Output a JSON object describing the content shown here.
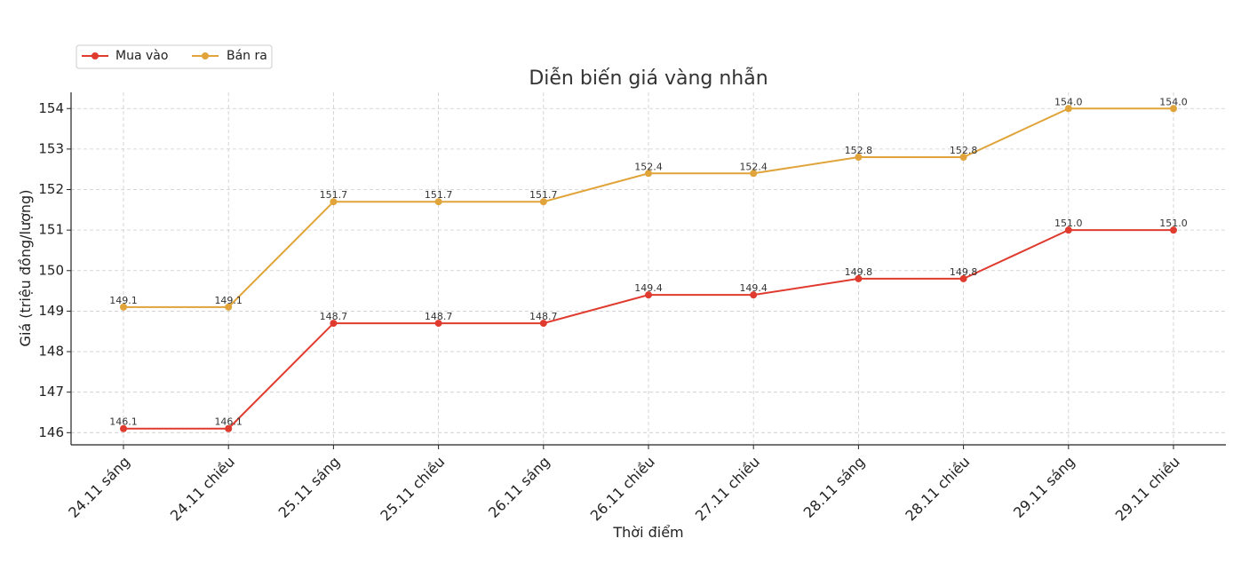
{
  "chart_data": {
    "type": "line",
    "title": "Diễn biến giá vàng nhẫn",
    "xlabel": "Thời điểm",
    "ylabel": "Giá (triệu đồng/lượng)",
    "categories": [
      "24.11 sáng",
      "24.11 chiều",
      "25.11 sáng",
      "25.11 chiều",
      "26.11 sáng",
      "26.11 chiều",
      "27.11 chiều",
      "28.11 sáng",
      "28.11 chiều",
      "29.11 sáng",
      "29.11 chiều"
    ],
    "ylim": [
      145.7,
      154.4
    ],
    "yticks": [
      146,
      147,
      148,
      149,
      150,
      151,
      152,
      153,
      154
    ],
    "grid": true,
    "legend_position": "top-left",
    "series": [
      {
        "name": "Mua vào",
        "color": "#e03b2f",
        "values": [
          146.1,
          146.1,
          148.7,
          148.7,
          148.7,
          149.4,
          149.4,
          149.8,
          149.8,
          151.0,
          151.0
        ],
        "labels": [
          "146.1",
          "146.1",
          "148.7",
          "148.7",
          "148.7",
          "149.4",
          "149.4",
          "149.8",
          "149.8",
          "151.0",
          "151.0"
        ]
      },
      {
        "name": "Bán ra",
        "color": "#e0a43a",
        "values": [
          149.1,
          149.1,
          151.7,
          151.7,
          151.7,
          152.4,
          152.4,
          152.8,
          152.8,
          154.0,
          154.0
        ],
        "labels": [
          "149.1",
          "149.1",
          "151.7",
          "151.7",
          "151.7",
          "152.4",
          "152.4",
          "152.8",
          "152.8",
          "154.0",
          "154.0"
        ]
      }
    ]
  }
}
